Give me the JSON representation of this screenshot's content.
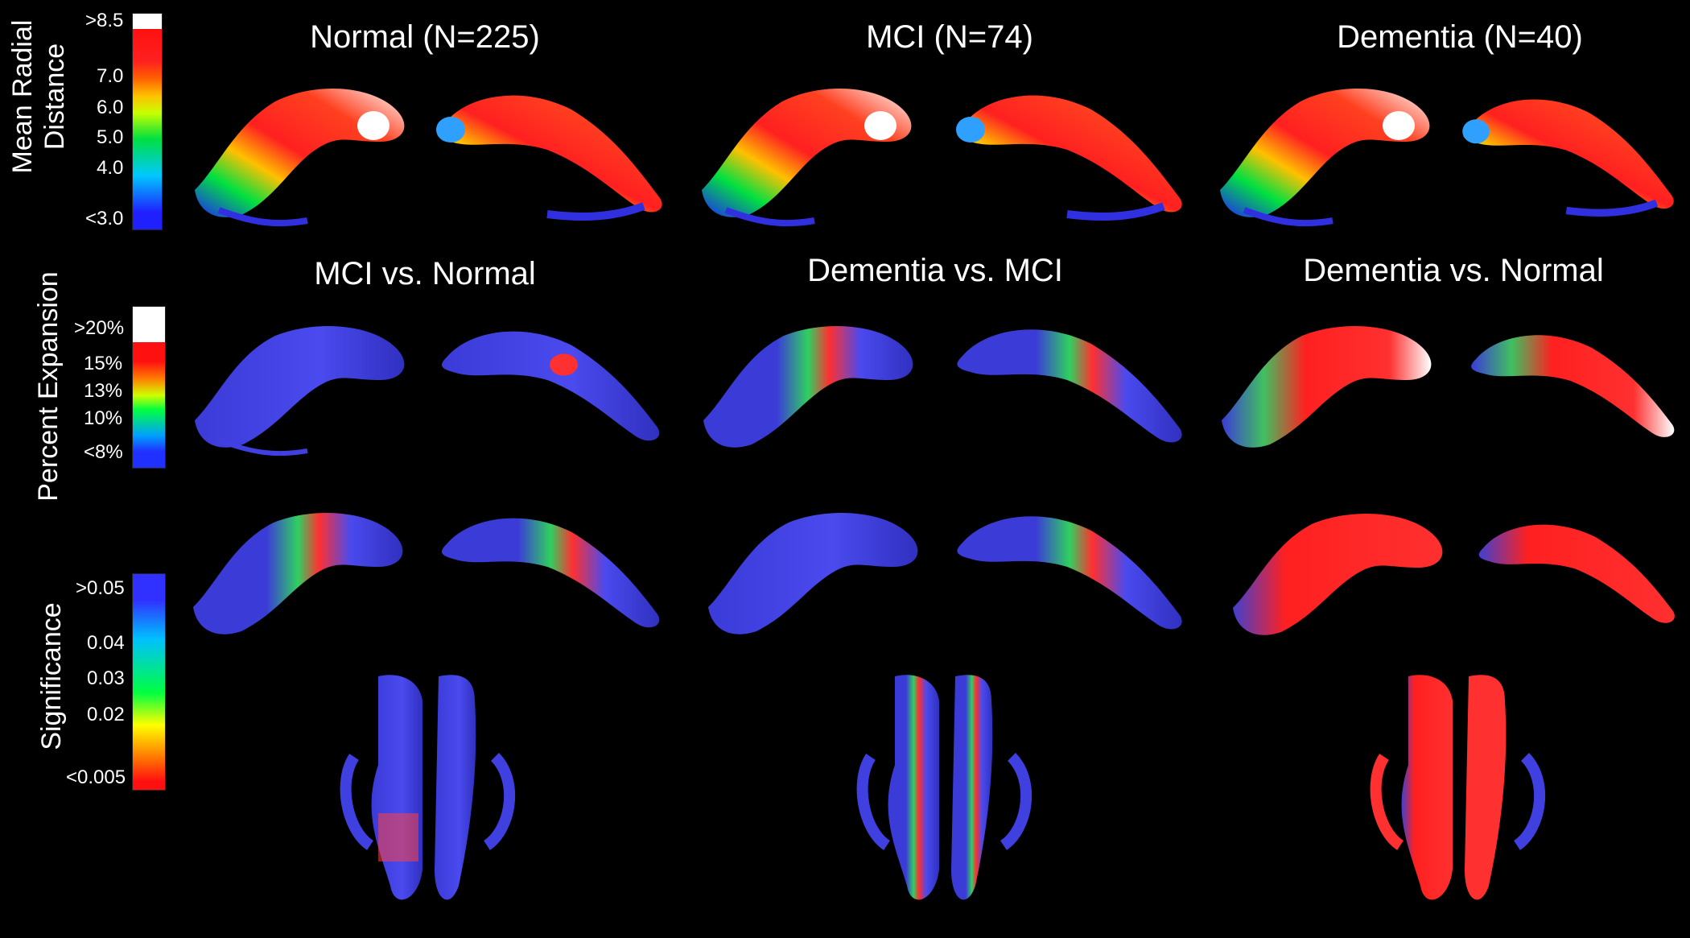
{
  "colormaps": {
    "radial": [
      "#2020ff",
      "#00c8ff",
      "#00e040",
      "#c8ff00",
      "#ffc000",
      "#ff6000",
      "#ff2020",
      "#ff1010",
      "#ffffff"
    ],
    "expansion": [
      "#2030ff",
      "#00a0ff",
      "#00ff40",
      "#d0ff00",
      "#ff8000",
      "#ff1010",
      "#ffffff"
    ],
    "significance": [
      "#ff1010",
      "#ff8000",
      "#ffff00",
      "#00ff40",
      "#00c0ff",
      "#3030ff"
    ]
  },
  "row1": {
    "legend_title_line1": "Mean Radial",
    "legend_title_line2": "Distance",
    "ticks": [
      ">8.5",
      "7.0",
      "6.0",
      "5.0",
      "4.0",
      "<3.0"
    ],
    "panels": [
      "Normal (N=225)",
      "MCI (N=74)",
      "Dementia (N=40)"
    ]
  },
  "row2": {
    "legend_title": "Percent Expansion",
    "ticks": [
      ">20%",
      "15%",
      "13%",
      "10%",
      "<8%"
    ],
    "panels": [
      "MCI vs. Normal",
      "Dementia vs. MCI",
      "Dementia vs. Normal"
    ]
  },
  "row3": {
    "legend_title": "Significance",
    "ticks": [
      ">0.05",
      "0.04",
      "0.03",
      "0.02",
      "<0.005"
    ]
  }
}
